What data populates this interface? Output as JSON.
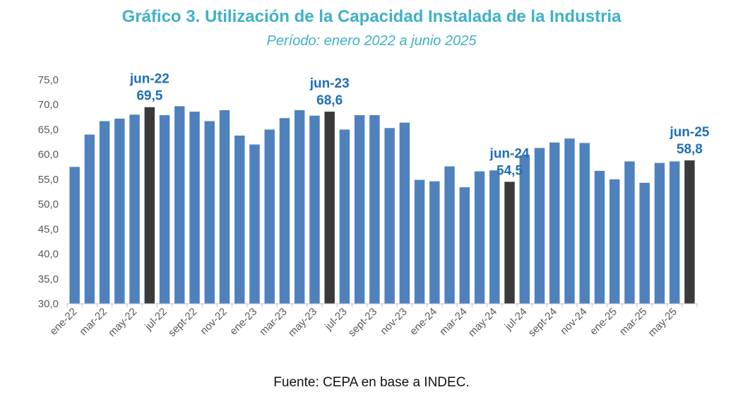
{
  "title": "Gráfico 3. Utilización de la Capacidad Instalada de la Industria",
  "subtitle": "Período: enero 2022 a junio 2025",
  "source": "Fuente: CEPA en base a INDEC.",
  "colors": {
    "bar": "#4f81bd",
    "highlight": "#3a3a3a",
    "annotation": "#1f6fb5",
    "title": "#3fb1c6"
  },
  "chart_data": {
    "type": "bar",
    "ylim": [
      30,
      75
    ],
    "yticks": [
      "30,0",
      "35,0",
      "40,0",
      "45,0",
      "50,0",
      "55,0",
      "60,0",
      "65,0",
      "70,0",
      "75,0"
    ],
    "grid": false,
    "categories": [
      "ene-22",
      "feb-22",
      "mar-22",
      "abr-22",
      "may-22",
      "jun-22",
      "jul-22",
      "ago-22",
      "sept-22",
      "oct-22",
      "nov-22",
      "dic-22",
      "ene-23",
      "feb-23",
      "mar-23",
      "abr-23",
      "may-23",
      "jun-23",
      "jul-23",
      "ago-23",
      "sept-23",
      "oct-23",
      "nov-23",
      "dic-23",
      "ene-24",
      "feb-24",
      "mar-24",
      "abr-24",
      "may-24",
      "jun-24",
      "jul-24",
      "ago-24",
      "sept-24",
      "oct-24",
      "nov-24",
      "dic-24",
      "ene-25",
      "feb-25",
      "mar-25",
      "abr-25",
      "may-25",
      "jun-25"
    ],
    "xtick_labels": [
      "ene-22",
      "mar-22",
      "may-22",
      "jul-22",
      "sept-22",
      "nov-22",
      "ene-23",
      "mar-23",
      "may-23",
      "jul-23",
      "sept-23",
      "nov-23",
      "ene-24",
      "mar-24",
      "may-24",
      "jul-24",
      "sept-24",
      "nov-24",
      "ene-25",
      "mar-25",
      "may-25"
    ],
    "values": [
      57.5,
      64.0,
      66.7,
      67.2,
      68.0,
      69.5,
      67.9,
      69.7,
      68.6,
      66.7,
      68.9,
      63.8,
      62.0,
      65.0,
      67.3,
      68.9,
      67.8,
      68.6,
      65.0,
      67.9,
      67.9,
      65.3,
      66.4,
      54.9,
      54.6,
      57.6,
      53.4,
      56.6,
      56.8,
      54.5,
      59.8,
      61.3,
      62.4,
      63.2,
      62.3,
      56.7,
      55.0,
      58.6,
      54.3,
      58.3,
      58.6,
      58.8
    ],
    "highlights": [
      {
        "index": 5,
        "label": "jun-22",
        "value_label": "69,5"
      },
      {
        "index": 17,
        "label": "jun-23",
        "value_label": "68,6"
      },
      {
        "index": 29,
        "label": "jun-24",
        "value_label": "54,5"
      },
      {
        "index": 41,
        "label": "jun-25",
        "value_label": "58,8"
      }
    ]
  }
}
